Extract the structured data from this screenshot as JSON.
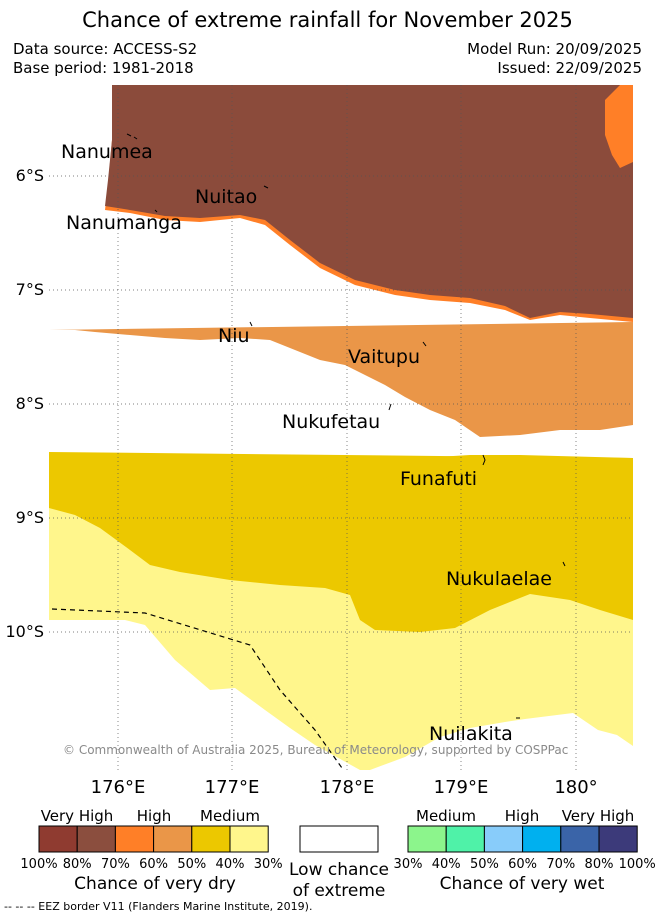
{
  "title": "Chance of extreme rainfall for November 2025",
  "info": {
    "data_source": "Data source: ACCESS-S2",
    "base_period": "Base period: 1981-2018",
    "model_run": "Model Run: 20/09/2025",
    "issued": "Issued: 22/09/2025"
  },
  "map": {
    "lat_labels": [
      "6°S",
      "7°S",
      "8°S",
      "9°S",
      "10°S"
    ],
    "lon_labels": [
      "176°E",
      "177°E",
      "178°E",
      "179°E",
      "180°"
    ],
    "islands": [
      "Nanumea",
      "Nuitao",
      "Nanumanga",
      "Niu",
      "Vaitupu",
      "Nukufetau",
      "Funafuti",
      "Nukulaelae",
      "Nuilakita"
    ],
    "copyright": "© Commonwealth of Australia 2025, Bureau of Meteorology, supported by COSPPac",
    "colors": {
      "very_high_dry": "#8b4b3b",
      "high_dry": "#ff7f27",
      "medium_dry_high": "#ea9648",
      "medium_dry": "#ecc800",
      "low_dry": "#fff68c",
      "low": "#ffffff"
    }
  },
  "legend": {
    "dry": {
      "headers": [
        "Very High",
        "High",
        "Medium"
      ],
      "ticks": [
        "100%",
        "80%",
        "70%",
        "60%",
        "50%",
        "40%",
        "30%"
      ],
      "colors": [
        "#8f3b30",
        "#8b4e3e",
        "#ff7f27",
        "#ea9648",
        "#ecc800",
        "#fff68c"
      ],
      "title": "Chance of very dry"
    },
    "low": {
      "line1": "Low chance",
      "line2": "of extreme"
    },
    "wet": {
      "headers": [
        "Medium",
        "High",
        "Very High"
      ],
      "ticks": [
        "30%",
        "40%",
        "50%",
        "60%",
        "70%",
        "80%",
        "100%"
      ],
      "colors": [
        "#8cf58c",
        "#4ff2a8",
        "#88ccfa",
        "#00b0ef",
        "#3a64a8",
        "#3c3a7a"
      ],
      "title": "Chance of very wet"
    }
  },
  "footnote": "--  --  -- EEZ border V11 (Flanders Marine Institute, 2019)."
}
